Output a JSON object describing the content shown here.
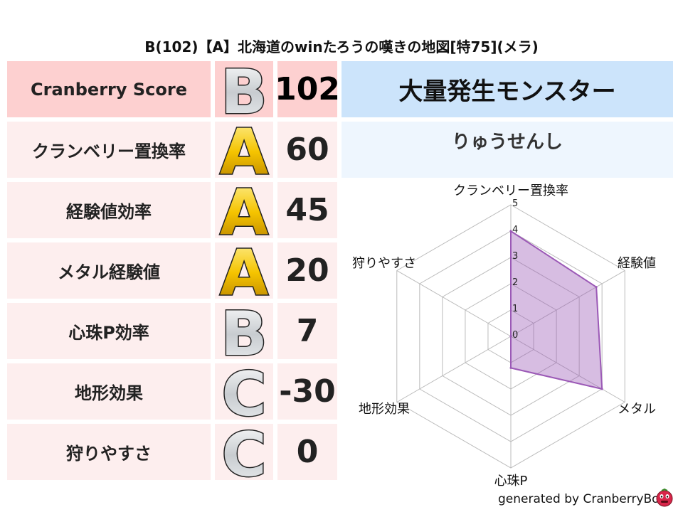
{
  "title": "B(102)【A】北海道のwinたろうの嘆きの地図[特75](メラ)",
  "score_table": [
    {
      "label": "Cranberry Score",
      "grade": "B",
      "value": "102"
    },
    {
      "label": "クランベリー置換率",
      "grade": "A",
      "value": "60"
    },
    {
      "label": "経験値効率",
      "grade": "A",
      "value": "45"
    },
    {
      "label": "メタル経験値",
      "grade": "A",
      "value": "20"
    },
    {
      "label": "心珠P効率",
      "grade": "B",
      "value": "7"
    },
    {
      "label": "地形効果",
      "grade": "C",
      "value": "-30"
    },
    {
      "label": "狩りやすさ",
      "grade": "C",
      "value": "0"
    }
  ],
  "monster_panel": {
    "header": "大量発生モンスター",
    "monster": "りゅうせんし"
  },
  "colors": {
    "header_row": "#fdd0d0",
    "row": "#fdeeee",
    "panel_header": "#cce4fb",
    "panel_sub": "#eef6fe",
    "radar_fill": "#9b59b6",
    "grade_gold": "#f5c400",
    "grade_silver": "#c8ccd0"
  },
  "chart_data": {
    "type": "radar",
    "axes": [
      "クランベリー置換率",
      "経験値",
      "メタル",
      "心珠P",
      "地形効果",
      "狩りやすさ"
    ],
    "values": [
      4,
      3.75,
      4,
      1.2,
      0,
      0
    ],
    "range": [
      0,
      5
    ],
    "ticks": [
      "0",
      "1",
      "2",
      "3",
      "4",
      "5"
    ],
    "grid": true
  },
  "footer": "generated by CranberryBot"
}
